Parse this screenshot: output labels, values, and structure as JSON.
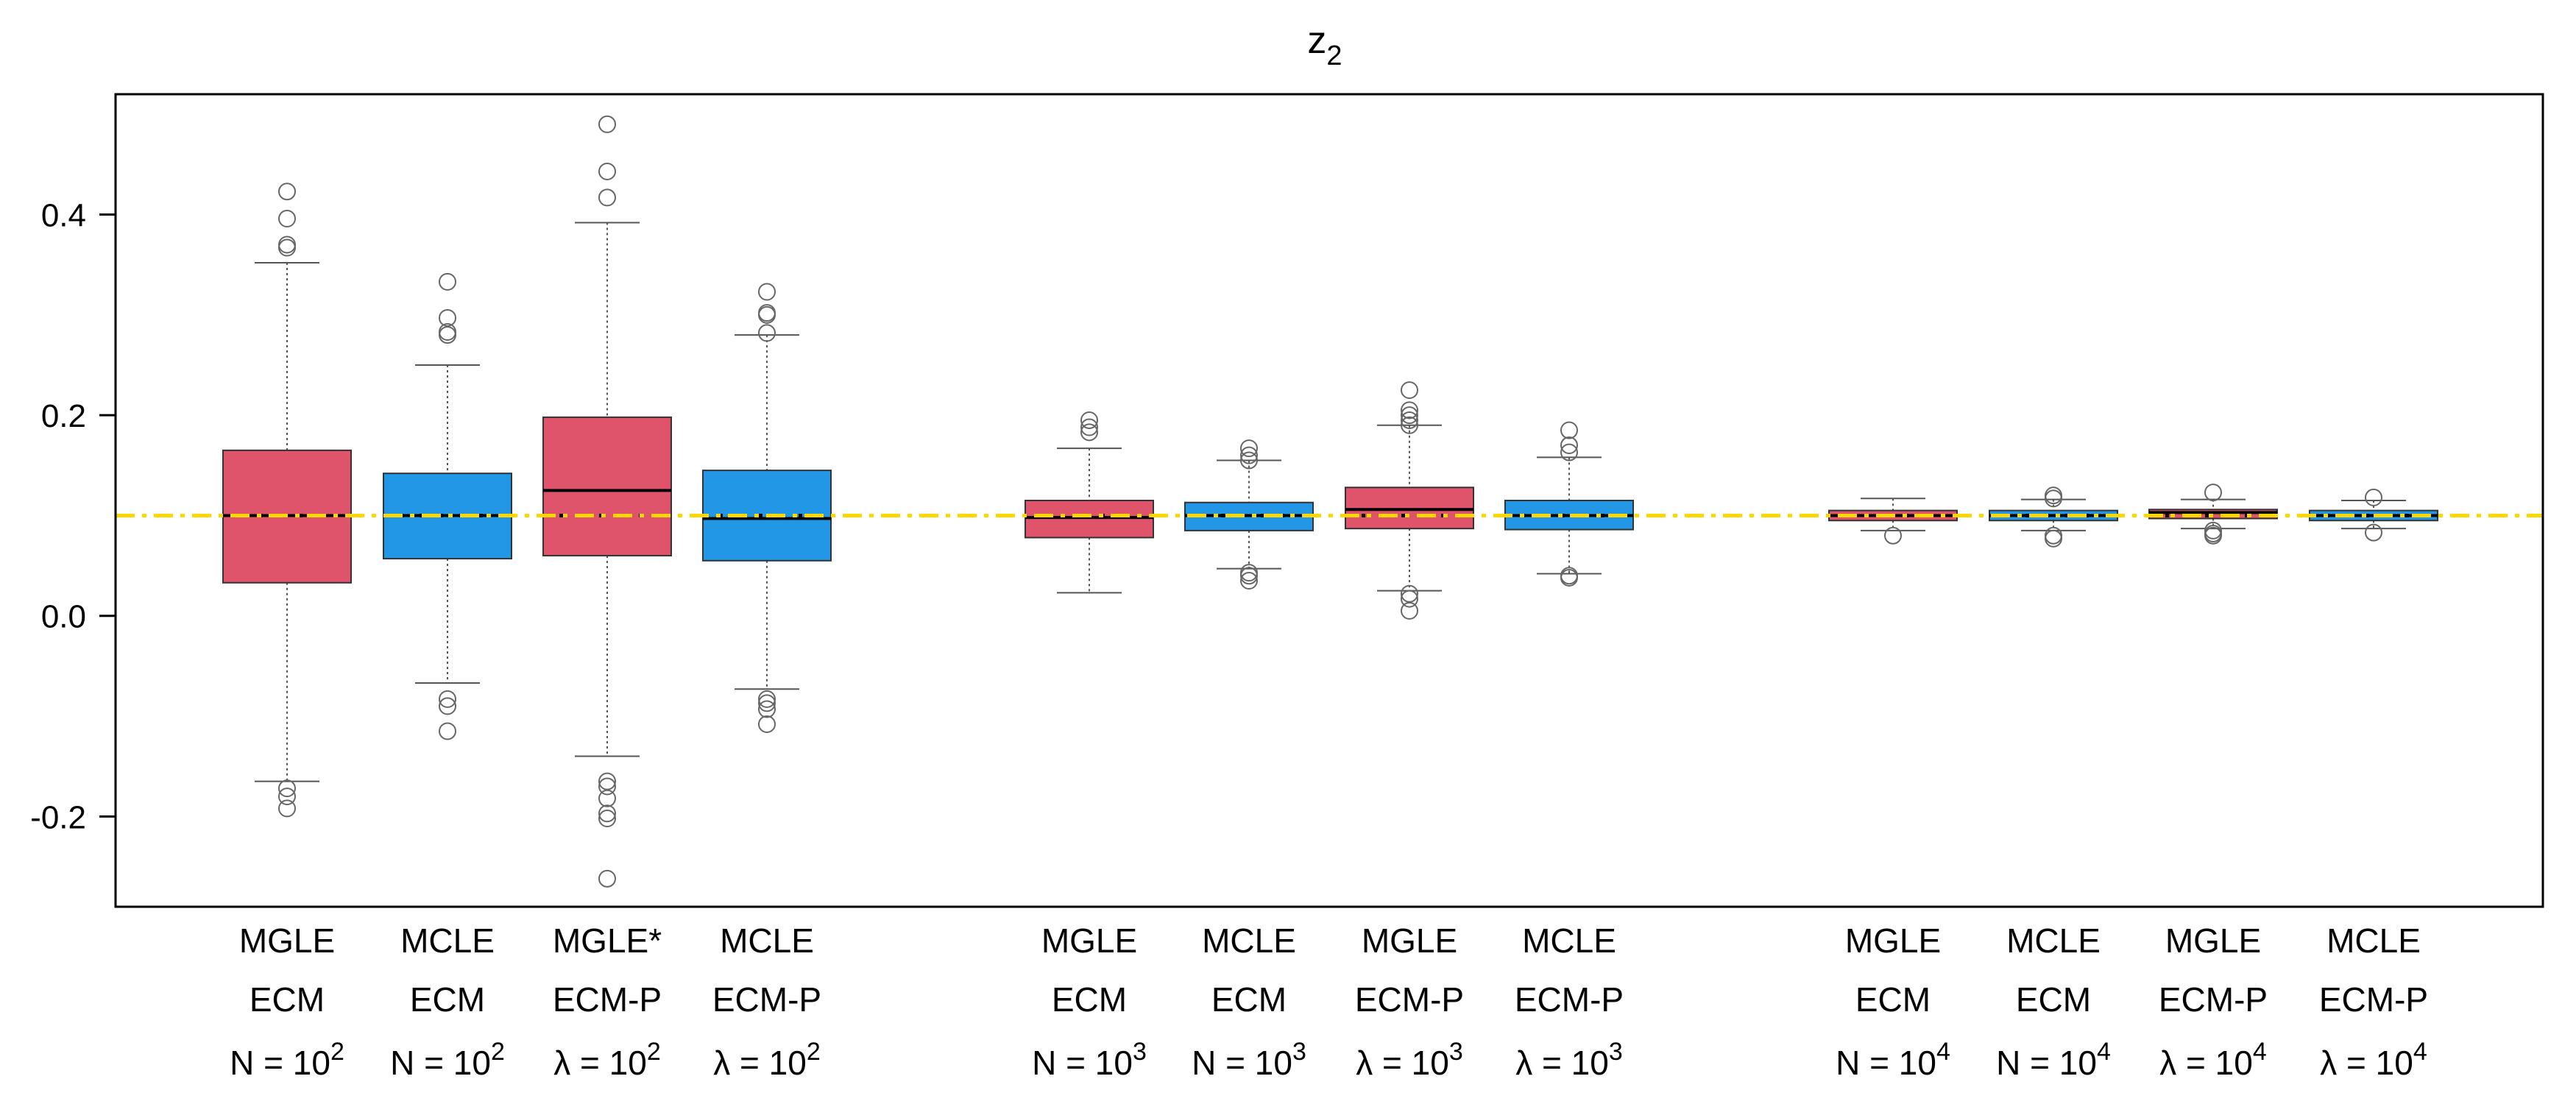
{
  "chart_data": {
    "type": "boxplot",
    "title": "z",
    "title_subscript": "2",
    "xlabel": "",
    "ylabel": "",
    "ylim": [
      -0.29,
      0.52
    ],
    "yticks": [
      -0.2,
      0.0,
      0.2,
      0.4
    ],
    "ytick_labels": [
      "-0.2",
      "0.0",
      "0.2",
      "0.4"
    ],
    "reference_line": {
      "y": 0.1,
      "style": "dash-dot",
      "color": "#FFD700"
    },
    "colors": {
      "red": "#DF536B",
      "blue": "#2297E6",
      "reference": "#FFD700"
    },
    "groups": [
      {
        "boxes": [
          {
            "line1": "MGLE",
            "line2": "ECM",
            "line3_prefix": "N = 10",
            "line3_exp": "2",
            "color": "red",
            "whisker_low": -0.165,
            "q1": 0.033,
            "median": 0.1,
            "q3": 0.165,
            "whisker_high": 0.352,
            "mean": 0.1,
            "outliers": [
              0.423,
              0.396,
              0.37,
              0.367,
              -0.172,
              -0.18,
              -0.192
            ]
          },
          {
            "line1": "MCLE",
            "line2": "ECM",
            "line3_prefix": "N = 10",
            "line3_exp": "2",
            "color": "blue",
            "whisker_low": -0.067,
            "q1": 0.057,
            "median": 0.1,
            "q3": 0.142,
            "whisker_high": 0.25,
            "mean": 0.1,
            "outliers": [
              0.333,
              0.297,
              0.283,
              0.28,
              -0.083,
              -0.09,
              -0.115
            ]
          },
          {
            "line1": "MGLE*",
            "line2": "ECM-P",
            "line3_prefix": "λ = 10",
            "line3_exp": "2",
            "color": "red",
            "whisker_low": -0.14,
            "q1": 0.06,
            "median": 0.125,
            "q3": 0.198,
            "whisker_high": 0.392,
            "mean": 0.1,
            "outliers": [
              0.49,
              0.443,
              0.417,
              -0.165,
              -0.17,
              -0.182,
              -0.197,
              -0.202,
              -0.262
            ]
          },
          {
            "line1": "MCLE",
            "line2": "ECM-P",
            "line3_prefix": "λ = 10",
            "line3_exp": "2",
            "color": "blue",
            "whisker_low": -0.073,
            "q1": 0.055,
            "median": 0.097,
            "q3": 0.145,
            "whisker_high": 0.28,
            "mean": 0.1,
            "outliers": [
              0.323,
              0.302,
              0.3,
              0.282,
              -0.083,
              -0.087,
              -0.093,
              -0.108
            ]
          }
        ]
      },
      {
        "boxes": [
          {
            "line1": "MGLE",
            "line2": "ECM",
            "line3_prefix": "N = 10",
            "line3_exp": "3",
            "color": "red",
            "whisker_low": 0.023,
            "q1": 0.078,
            "median": 0.098,
            "q3": 0.115,
            "whisker_high": 0.167,
            "mean": 0.1,
            "outliers": [
              0.195,
              0.188,
              0.183
            ]
          },
          {
            "line1": "MCLE",
            "line2": "ECM",
            "line3_prefix": "N = 10",
            "line3_exp": "3",
            "color": "blue",
            "whisker_low": 0.047,
            "q1": 0.085,
            "median": 0.1,
            "q3": 0.113,
            "whisker_high": 0.155,
            "mean": 0.1,
            "outliers": [
              0.167,
              0.16,
              0.155,
              0.043,
              0.04,
              0.035
            ]
          },
          {
            "line1": "MGLE",
            "line2": "ECM-P",
            "line3_prefix": "λ = 10",
            "line3_exp": "3",
            "color": "red",
            "whisker_low": 0.025,
            "q1": 0.087,
            "median": 0.106,
            "q3": 0.128,
            "whisker_high": 0.19,
            "mean": 0.1,
            "outliers": [
              0.225,
              0.205,
              0.2,
              0.195,
              0.19,
              0.022,
              0.017,
              0.005
            ]
          },
          {
            "line1": "MCLE",
            "line2": "ECM-P",
            "line3_prefix": "λ = 10",
            "line3_exp": "3",
            "color": "blue",
            "whisker_low": 0.042,
            "q1": 0.086,
            "median": 0.1,
            "q3": 0.115,
            "whisker_high": 0.158,
            "mean": 0.1,
            "outliers": [
              0.185,
              0.17,
              0.163,
              0.04,
              0.038
            ]
          }
        ]
      },
      {
        "boxes": [
          {
            "line1": "MGLE",
            "line2": "ECM",
            "line3_prefix": "N = 10",
            "line3_exp": "4",
            "color": "red",
            "whisker_low": 0.085,
            "q1": 0.095,
            "median": 0.1,
            "q3": 0.105,
            "whisker_high": 0.117,
            "mean": 0.1,
            "outliers": [
              0.08
            ]
          },
          {
            "line1": "MCLE",
            "line2": "ECM",
            "line3_prefix": "N = 10",
            "line3_exp": "4",
            "color": "blue",
            "whisker_low": 0.085,
            "q1": 0.095,
            "median": 0.1,
            "q3": 0.105,
            "whisker_high": 0.116,
            "mean": 0.1,
            "outliers": [
              0.12,
              0.117,
              0.08,
              0.077
            ]
          },
          {
            "line1": "MGLE",
            "line2": "ECM-P",
            "line3_prefix": "λ = 10",
            "line3_exp": "4",
            "color": "red",
            "whisker_low": 0.087,
            "q1": 0.097,
            "median": 0.103,
            "q3": 0.106,
            "whisker_high": 0.116,
            "mean": 0.1,
            "outliers": [
              0.123,
              0.085,
              0.082,
              0.08
            ]
          },
          {
            "line1": "MCLE",
            "line2": "ECM-P",
            "line3_prefix": "λ = 10",
            "line3_exp": "4",
            "color": "blue",
            "whisker_low": 0.087,
            "q1": 0.095,
            "median": 0.1,
            "q3": 0.105,
            "whisker_high": 0.115,
            "mean": 0.1,
            "outliers": [
              0.118,
              0.083
            ]
          }
        ]
      }
    ]
  }
}
